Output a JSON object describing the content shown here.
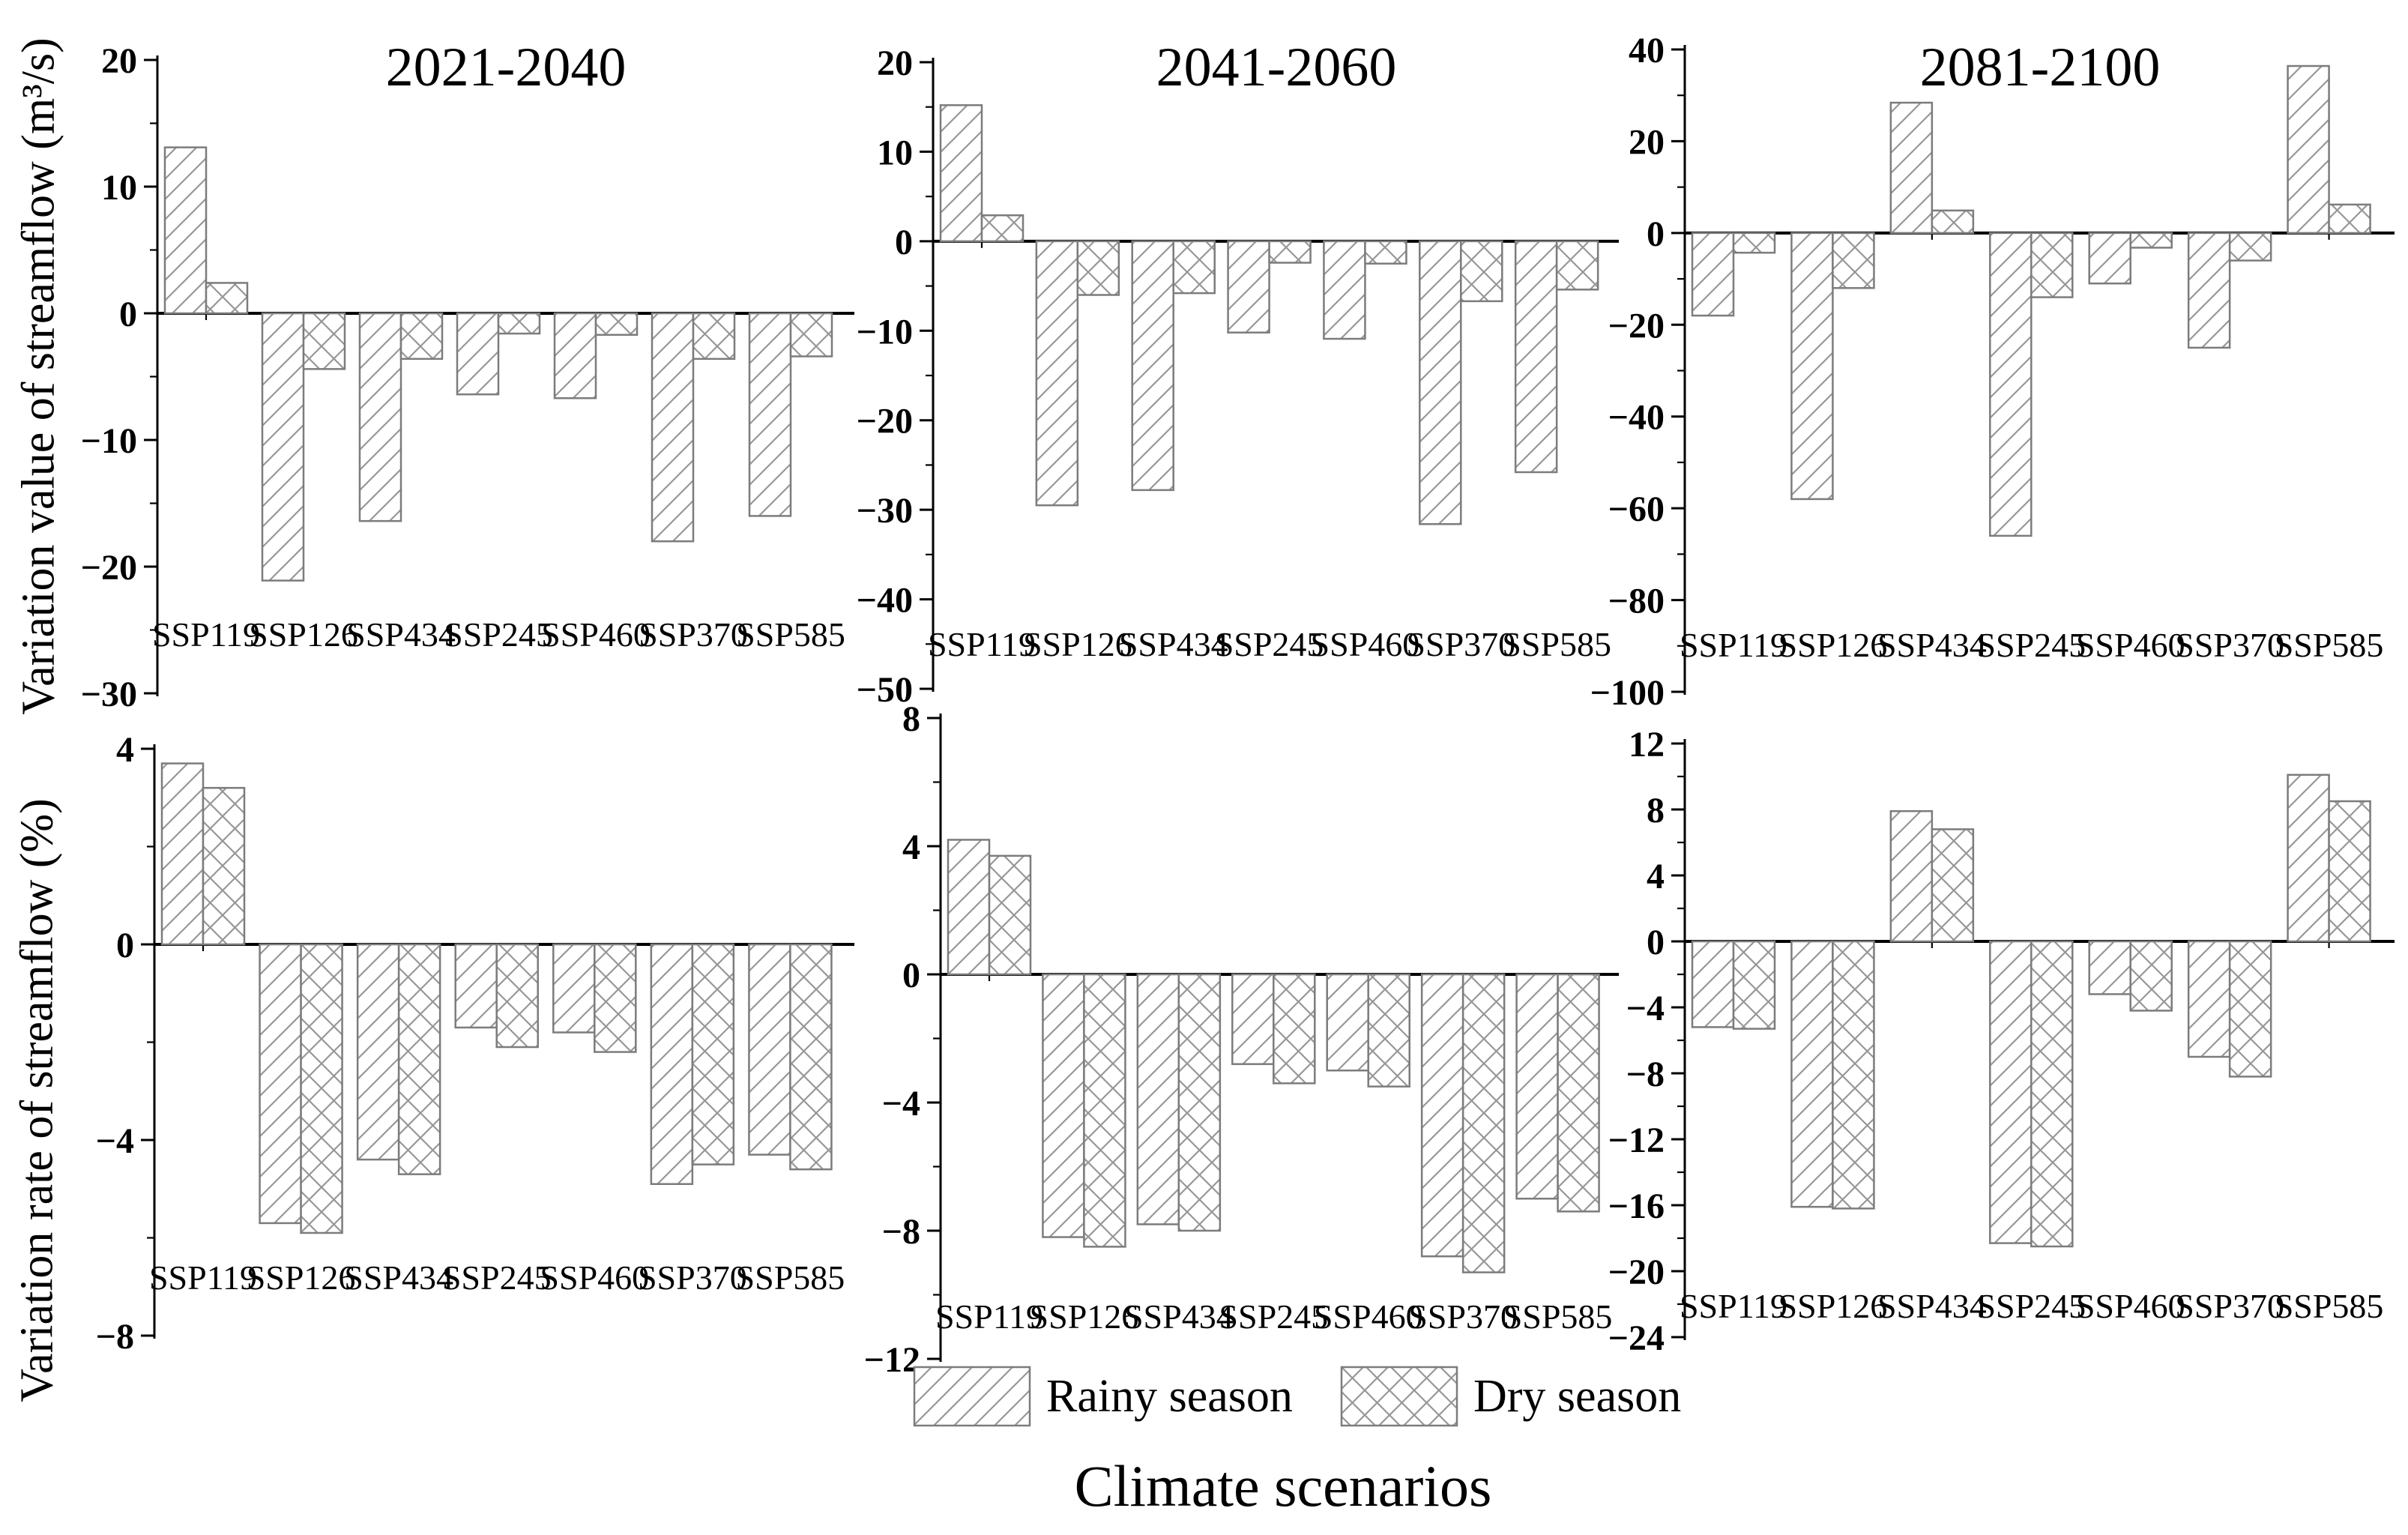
{
  "figure": {
    "background": "#ffffff",
    "text_color": "#000000",
    "bar_outline_color": "#7c7c7c",
    "hatch_color": "#979797"
  },
  "axis_titles": {
    "row1": "Variation value of streamflow (m³/s)",
    "row2": "Variation rate of streamflow (%)",
    "x": "Climate scenarios"
  },
  "legend": {
    "position": "bottom-center",
    "items": [
      {
        "label": "Rainy season",
        "pattern": "diagonal-hatch"
      },
      {
        "label": "Dry season",
        "pattern": "cross-hatch"
      }
    ]
  },
  "categories": [
    "SSP119",
    "SSP126",
    "SSP434",
    "SSP245",
    "SSP460",
    "SSP370",
    "SSP585"
  ],
  "chart_data": [
    {
      "id": "value-2021-2040",
      "type": "bar",
      "title": "2021-2040",
      "ylabel": "Variation value of streamflow (m³/s)",
      "xlabel": "Climate scenarios",
      "grid": false,
      "ylim": [
        -30,
        20
      ],
      "yticks": [
        20,
        10,
        0,
        -10,
        -20,
        -30
      ],
      "categories": [
        "SSP119",
        "SSP126",
        "SSP434",
        "SSP245",
        "SSP460",
        "SSP370",
        "SSP585"
      ],
      "series": [
        {
          "name": "Rainy season",
          "values": [
            13.1,
            -21.1,
            -16.4,
            -6.4,
            -6.7,
            -18.0,
            -16.0
          ]
        },
        {
          "name": "Dry season",
          "values": [
            2.4,
            -4.4,
            -3.6,
            -1.6,
            -1.7,
            -3.6,
            -3.4
          ]
        }
      ]
    },
    {
      "id": "value-2041-2060",
      "type": "bar",
      "title": "2041-2060",
      "ylabel": "Variation value of streamflow (m³/s)",
      "xlabel": "Climate scenarios",
      "grid": false,
      "ylim": [
        -50,
        20
      ],
      "yticks": [
        20,
        10,
        0,
        -10,
        -20,
        -30,
        -40,
        -50
      ],
      "categories": [
        "SSP119",
        "SSP126",
        "SSP434",
        "SSP245",
        "SSP460",
        "SSP370",
        "SSP585"
      ],
      "series": [
        {
          "name": "Rainy season",
          "values": [
            15.2,
            -29.5,
            -27.8,
            -10.2,
            -10.9,
            -31.6,
            -25.8
          ]
        },
        {
          "name": "Dry season",
          "values": [
            2.9,
            -6.0,
            -5.8,
            -2.4,
            -2.5,
            -6.7,
            -5.4
          ]
        }
      ]
    },
    {
      "id": "value-2081-2100",
      "type": "bar",
      "title": "2081-2100",
      "ylabel": "Variation value of streamflow (m³/s)",
      "xlabel": "Climate scenarios",
      "grid": false,
      "ylim": [
        -100,
        40
      ],
      "yticks": [
        40,
        20,
        0,
        -20,
        -40,
        -60,
        -80,
        -100
      ],
      "categories": [
        "SSP119",
        "SSP126",
        "SSP434",
        "SSP245",
        "SSP460",
        "SSP370",
        "SSP585"
      ],
      "series": [
        {
          "name": "Rainy season",
          "values": [
            -18.0,
            -58.0,
            28.4,
            -66.0,
            -11.0,
            -25.0,
            36.4
          ]
        },
        {
          "name": "Dry season",
          "values": [
            -4.3,
            -12.0,
            4.9,
            -14.0,
            -3.2,
            -6.0,
            6.2
          ]
        }
      ]
    },
    {
      "id": "rate-2021-2040",
      "type": "bar",
      "title": "",
      "ylabel": "Variation rate of streamflow (%)",
      "xlabel": "Climate scenarios",
      "grid": false,
      "ylim": [
        -8,
        4
      ],
      "yticks": [
        4,
        0,
        -4,
        -8
      ],
      "categories": [
        "SSP119",
        "SSP126",
        "SSP434",
        "SSP245",
        "SSP460",
        "SSP370",
        "SSP585"
      ],
      "series": [
        {
          "name": "Rainy season",
          "values": [
            3.7,
            -5.7,
            -4.4,
            -1.7,
            -1.8,
            -4.9,
            -4.3
          ]
        },
        {
          "name": "Dry season",
          "values": [
            3.2,
            -5.9,
            -4.7,
            -2.1,
            -2.2,
            -4.5,
            -4.6
          ]
        }
      ]
    },
    {
      "id": "rate-2041-2060",
      "type": "bar",
      "title": "",
      "ylabel": "Variation rate of streamflow (%)",
      "xlabel": "Climate scenarios",
      "grid": false,
      "ylim": [
        -12,
        8
      ],
      "yticks": [
        8,
        4,
        0,
        -4,
        -8,
        -12
      ],
      "categories": [
        "SSP119",
        "SSP126",
        "SSP434",
        "SSP245",
        "SSP460",
        "SSP370",
        "SSP585"
      ],
      "series": [
        {
          "name": "Rainy season",
          "values": [
            4.2,
            -8.2,
            -7.8,
            -2.8,
            -3.0,
            -8.8,
            -7.0
          ]
        },
        {
          "name": "Dry season",
          "values": [
            3.7,
            -8.5,
            -8.0,
            -3.4,
            -3.5,
            -9.3,
            -7.4
          ]
        }
      ]
    },
    {
      "id": "rate-2081-2100",
      "type": "bar",
      "title": "",
      "ylabel": "Variation rate of streamflow (%)",
      "xlabel": "Climate scenarios",
      "grid": false,
      "ylim": [
        -24,
        12
      ],
      "yticks": [
        12,
        8,
        4,
        0,
        -4,
        -8,
        -12,
        -16,
        -20,
        -24
      ],
      "categories": [
        "SSP119",
        "SSP126",
        "SSP434",
        "SSP245",
        "SSP460",
        "SSP370",
        "SSP585"
      ],
      "series": [
        {
          "name": "Rainy season",
          "values": [
            -5.2,
            -16.1,
            7.9,
            -18.3,
            -3.2,
            -7.0,
            10.1
          ]
        },
        {
          "name": "Dry season",
          "values": [
            -5.3,
            -16.2,
            6.8,
            -18.5,
            -4.2,
            -8.2,
            8.5
          ]
        }
      ]
    }
  ]
}
